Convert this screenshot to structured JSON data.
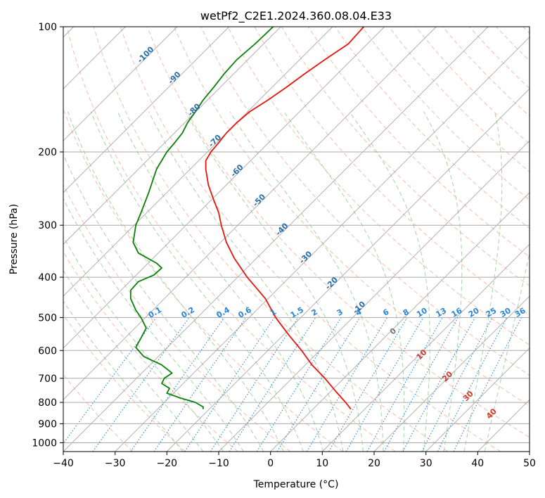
{
  "chart_data": {
    "type": "line",
    "title": "wetPf2_C2E1.2024.360.08.04.E33",
    "xlabel": "Temperature (°C)",
    "ylabel": "Pressure (hPa)",
    "xlim": [
      -40,
      50
    ],
    "ylim": [
      1050,
      100
    ],
    "y_scale": "log",
    "grid": true,
    "x_ticks": [
      "−40",
      "−30",
      "−20",
      "−10",
      "0",
      "10",
      "20",
      "30",
      "40",
      "50"
    ],
    "y_ticks": [
      "100",
      "200",
      "300",
      "400",
      "500",
      "600",
      "700",
      "800",
      "900",
      "1000"
    ],
    "colors": {
      "temperature": "#e8150c",
      "dewpoint": "#0a800a",
      "dry_adiabat": "#f6a083",
      "moist_adiabat": "#8fc98f",
      "mixing_ratio": "#2a86d6",
      "isotherm": "#9a9a9a",
      "isobar": "#aaaaaa",
      "dry_label": "#d43a2a",
      "mixing_label": "#2a86d6",
      "isotherm_label": "#2a6fa8"
    },
    "series": [
      {
        "values": [
          [
            100,
            18.0
          ],
          [
            110,
            15.0
          ],
          [
            120,
            10.5
          ],
          [
            130,
            6.5
          ],
          [
            140,
            3.0
          ],
          [
            150,
            -0.5
          ],
          [
            160,
            -4.0
          ],
          [
            170,
            -6.5
          ],
          [
            180,
            -8.5
          ],
          [
            190,
            -10.0
          ],
          [
            200,
            -11.5
          ],
          [
            210,
            -12.5
          ],
          [
            220,
            -12.5
          ],
          [
            240,
            -12.0
          ],
          [
            260,
            -11.0
          ],
          [
            280,
            -10.0
          ],
          [
            300,
            -9.5
          ],
          [
            330,
            -8.5
          ],
          [
            360,
            -7.0
          ],
          [
            400,
            -4.5
          ],
          [
            450,
            -1.0
          ],
          [
            500,
            1.0
          ],
          [
            550,
            3.5
          ],
          [
            600,
            6.0
          ],
          [
            650,
            8.0
          ],
          [
            700,
            10.5
          ],
          [
            750,
            12.5
          ],
          [
            800,
            14.5
          ],
          [
            830,
            15.5
          ]
        ]
      },
      {
        "values": [
          [
            100,
            0.5
          ],
          [
            110,
            -3.0
          ],
          [
            120,
            -6.5
          ],
          [
            130,
            -9.0
          ],
          [
            140,
            -11.0
          ],
          [
            150,
            -13.0
          ],
          [
            160,
            -14.5
          ],
          [
            170,
            -16.0
          ],
          [
            180,
            -17.0
          ],
          [
            190,
            -18.5
          ],
          [
            200,
            -20.0
          ],
          [
            220,
            -22.0
          ],
          [
            250,
            -23.5
          ],
          [
            280,
            -25.0
          ],
          [
            300,
            -26.0
          ],
          [
            330,
            -26.5
          ],
          [
            350,
            -25.5
          ],
          [
            370,
            -22.0
          ],
          [
            380,
            -21.0
          ],
          [
            395,
            -22.5
          ],
          [
            410,
            -25.5
          ],
          [
            430,
            -27.0
          ],
          [
            450,
            -27.0
          ],
          [
            480,
            -26.0
          ],
          [
            500,
            -25.0
          ],
          [
            530,
            -24.0
          ],
          [
            560,
            -25.0
          ],
          [
            590,
            -26.0
          ],
          [
            620,
            -24.5
          ],
          [
            650,
            -21.0
          ],
          [
            680,
            -19.0
          ],
          [
            700,
            -20.5
          ],
          [
            720,
            -21.0
          ],
          [
            740,
            -19.5
          ],
          [
            760,
            -20.0
          ],
          [
            780,
            -17.5
          ],
          [
            800,
            -14.5
          ],
          [
            820,
            -13.0
          ],
          [
            830,
            -13.0
          ]
        ]
      }
    ],
    "isotherm_labels": [
      "-100",
      "-90",
      "-80",
      "-70",
      "-60",
      "-50",
      "-40",
      "-30",
      "-20",
      "-10"
    ],
    "mixing_ratio_labels": [
      "0.1",
      "0.2",
      "0.4",
      "0.6",
      "1",
      "1.5",
      "2",
      "3",
      "4",
      "6",
      "8",
      "10",
      "13",
      "16",
      "20",
      "25",
      "30",
      "36"
    ],
    "dry_adiabat_labels": [
      "0",
      "10",
      "20",
      "30",
      "40"
    ]
  }
}
